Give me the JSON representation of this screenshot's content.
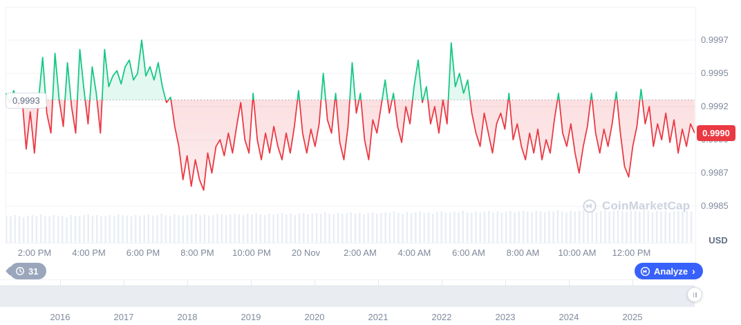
{
  "watermark": {
    "text": "CoinMarketCap"
  },
  "history_badge": {
    "count": "31"
  },
  "analyze_button": {
    "label": "Analyze",
    "chevron": "›"
  },
  "timeline": {
    "years": [
      "2016",
      "2017",
      "2018",
      "2019",
      "2020",
      "2021",
      "2022",
      "2023",
      "2024",
      "2025"
    ]
  },
  "colors": {
    "up_line": "#16c784",
    "down_line": "#ea3943",
    "up_fill": "rgba(22,199,132,0.12)",
    "down_fill_strong": "rgba(234,57,67,0.16)",
    "down_fill_weak": "rgba(234,57,67,0.04)",
    "grid": "#f0f2f5",
    "baseline_dots": "#a9b2bf",
    "volume_bar": "#eaeef4",
    "badge_bg": "#ea3943",
    "accent_blue": "#3861fb"
  },
  "chart_data": {
    "type": "line",
    "unit": "USD",
    "baseline": {
      "value": 0.9993,
      "label": "0.9993"
    },
    "current_price": {
      "value": 0.99905,
      "label": "0.9990"
    },
    "y_axis": {
      "min": 0.99822,
      "max": 1.0,
      "ticks": [
        {
          "label": "0.9997",
          "value": 0.99975
        },
        {
          "label": "0.9995",
          "value": 0.9995
        },
        {
          "label": "0.9992",
          "value": 0.99925
        },
        {
          "label": "0.9990",
          "value": 0.999
        },
        {
          "label": "0.9987",
          "value": 0.99875
        },
        {
          "label": "0.9985",
          "value": 0.9985
        }
      ]
    },
    "x_axis": {
      "labels": [
        "2:00 PM",
        "4:00 PM",
        "6:00 PM",
        "8:00 PM",
        "10:00 PM",
        "20 Nov",
        "2:00 AM",
        "4:00 AM",
        "6:00 AM",
        "8:00 AM",
        "10:00 AM",
        "12:00 PM"
      ]
    },
    "series": [
      {
        "name": "price",
        "values": [
          0.99935,
          0.99928,
          0.99937,
          0.99925,
          0.99932,
          0.99893,
          0.99921,
          0.9989,
          0.9993,
          0.99962,
          0.9992,
          0.99905,
          0.99965,
          0.9993,
          0.9991,
          0.99958,
          0.99925,
          0.99905,
          0.99968,
          0.99938,
          0.99912,
          0.99955,
          0.99935,
          0.99905,
          0.99968,
          0.9994,
          0.99948,
          0.99952,
          0.99942,
          0.99955,
          0.9996,
          0.99945,
          0.9995,
          0.99975,
          0.99948,
          0.99955,
          0.99945,
          0.99958,
          0.9994,
          0.99928,
          0.99932,
          0.9991,
          0.99895,
          0.9987,
          0.99888,
          0.99865,
          0.99885,
          0.9987,
          0.99862,
          0.9989,
          0.99875,
          0.99895,
          0.999,
          0.99888,
          0.99905,
          0.9989,
          0.9991,
          0.99928,
          0.999,
          0.9989,
          0.99935,
          0.999,
          0.99885,
          0.99905,
          0.9989,
          0.9991,
          0.99895,
          0.99885,
          0.99905,
          0.9989,
          0.9991,
          0.99937,
          0.99905,
          0.9989,
          0.99908,
          0.99895,
          0.99912,
          0.9995,
          0.99915,
          0.99905,
          0.99935,
          0.99898,
          0.99885,
          0.9991,
          0.99958,
          0.9992,
          0.99935,
          0.999,
          0.99885,
          0.99915,
          0.99905,
          0.99925,
          0.99945,
          0.9992,
          0.99935,
          0.9991,
          0.99898,
          0.99925,
          0.99912,
          0.9994,
          0.9996,
          0.99928,
          0.9994,
          0.99912,
          0.99925,
          0.99905,
          0.9993,
          0.99912,
          0.99973,
          0.9994,
          0.9995,
          0.99935,
          0.99945,
          0.9992,
          0.99905,
          0.99895,
          0.9992,
          0.99905,
          0.9989,
          0.99912,
          0.9992,
          0.99908,
          0.99935,
          0.999,
          0.99912,
          0.99895,
          0.99885,
          0.99905,
          0.9989,
          0.99908,
          0.99885,
          0.999,
          0.9989,
          0.99915,
          0.99935,
          0.99905,
          0.99895,
          0.99912,
          0.9989,
          0.99875,
          0.99895,
          0.9991,
          0.99935,
          0.99905,
          0.9989,
          0.99908,
          0.99895,
          0.99912,
          0.99936,
          0.99905,
          0.9988,
          0.99872,
          0.99895,
          0.9991,
          0.99938,
          0.99912,
          0.99925,
          0.99895,
          0.99912,
          0.999,
          0.9992,
          0.99898,
          0.99915,
          0.9989,
          0.99908,
          0.99895,
          0.99912,
          0.99905
        ]
      }
    ],
    "volume": [
      40,
      39,
      41,
      40,
      38,
      40,
      41,
      39,
      42,
      40,
      39,
      41,
      40,
      40,
      38,
      41,
      40,
      39,
      41,
      42,
      40,
      41,
      39,
      40,
      41,
      40,
      42,
      41,
      40,
      39,
      41,
      40,
      41,
      42,
      40,
      41,
      43,
      41,
      40,
      42,
      41,
      40,
      41,
      42,
      43,
      41,
      42,
      40,
      41,
      43,
      42,
      41,
      42,
      43,
      42,
      41,
      43,
      42,
      44,
      42,
      41,
      43,
      42,
      43,
      44,
      42,
      43,
      41,
      43,
      44,
      42,
      43,
      44,
      43,
      45,
      43,
      42,
      44,
      43,
      44,
      45,
      43,
      44,
      42,
      44,
      45,
      43,
      44,
      45,
      44,
      46,
      44,
      43,
      45,
      44,
      45,
      46,
      44,
      45,
      43,
      45,
      46,
      44,
      45,
      46,
      45,
      47,
      45,
      44,
      46,
      45,
      46,
      47,
      45,
      46,
      44,
      46,
      47,
      45,
      46,
      47,
      46,
      45,
      47,
      46,
      45,
      47,
      46,
      48,
      46,
      45,
      47,
      46,
      47,
      48,
      46,
      47,
      45,
      47,
      48,
      46,
      47,
      48,
      47,
      46,
      48,
      47,
      46,
      48,
      47,
      45,
      47,
      46,
      47,
      45,
      46,
      47,
      46,
      47,
      46
    ]
  }
}
